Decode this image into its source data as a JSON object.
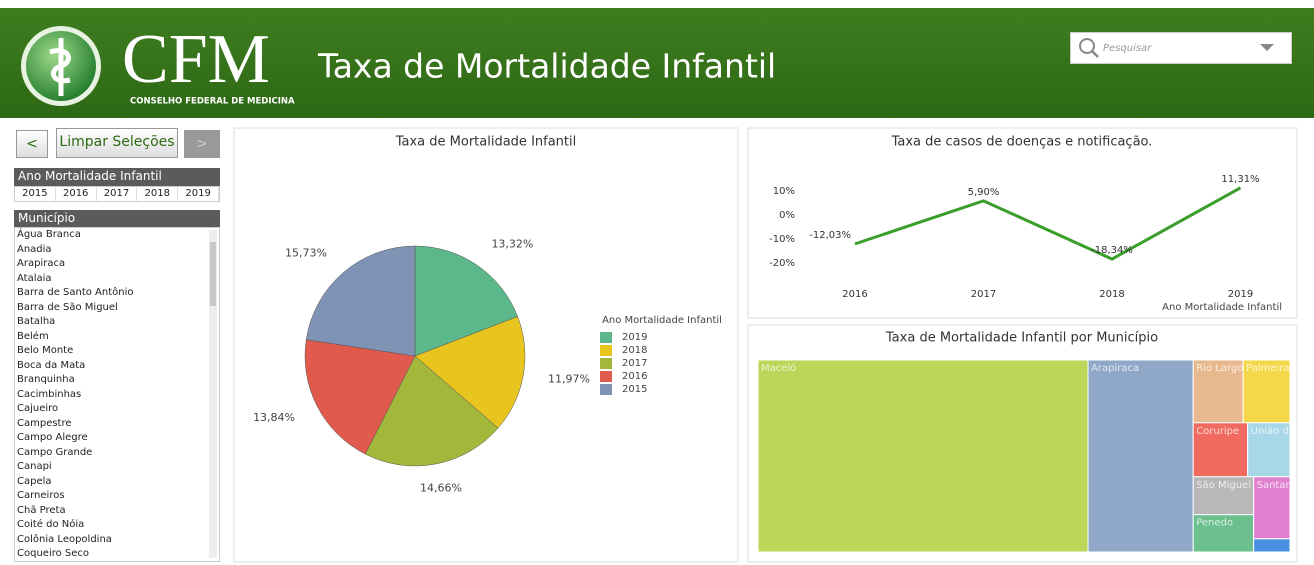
{
  "header": {
    "logo": "CFM",
    "logo_subtitle": "CONSELHO FEDERAL DE MEDICINA",
    "title": "Taxa de Mortalidade Infantil",
    "search_placeholder": "Pesquisar"
  },
  "toolbar": {
    "back": "<",
    "clear": "Limpar Seleções",
    "forward": ">"
  },
  "year_filter": {
    "title": "Ano Mortalidade Infantil",
    "options": [
      "2015",
      "2016",
      "2017",
      "2018",
      "2019"
    ]
  },
  "municipio_filter": {
    "title": "Município",
    "options": [
      "Água Branca",
      "Anadia",
      "Arapiraca",
      "Atalaia",
      "Barra de Santo Antônio",
      "Barra de São Miguel",
      "Batalha",
      "Belém",
      "Belo Monte",
      "Boca da Mata",
      "Branquinha",
      "Cacimbinhas",
      "Cajueiro",
      "Campestre",
      "Campo Alegre",
      "Campo Grande",
      "Canapi",
      "Capela",
      "Carneiros",
      "Chã Preta",
      "Coité do Nóia",
      "Colônia Leopoldina",
      "Coqueiro Seco"
    ]
  },
  "pie_chart": {
    "type": "pie",
    "title": "Taxa de Mortalidade Infantil",
    "legend_title": "Ano Mortalidade Infantil",
    "categories": [
      "2019",
      "2018",
      "2017",
      "2016",
      "2015"
    ],
    "values": [
      13.32,
      11.97,
      14.66,
      13.84,
      15.73
    ],
    "value_labels": [
      "13,32%",
      "11,97%",
      "14,66%",
      "13,84%",
      "15,73%"
    ],
    "colors": [
      "#5cb88a",
      "#e8c51e",
      "#a3b83a",
      "#e05a4e",
      "#7f93b5"
    ]
  },
  "line_chart": {
    "type": "line",
    "title": "Taxa de casos de doenças e notificação.",
    "x_label": "Ano Mortalidade Infantil",
    "categories": [
      "2016",
      "2017",
      "2018",
      "2019"
    ],
    "values": [
      -12.03,
      5.9,
      -18.34,
      11.31
    ],
    "value_labels": [
      "-12,03%",
      "5,90%",
      "-18,34%",
      "11,31%"
    ],
    "color": "#3a9e2a",
    "ylim": [
      -25,
      15
    ],
    "yticks": [
      {
        "value": 10,
        "label": "10%"
      },
      {
        "value": 0,
        "label": "0%"
      },
      {
        "value": -10,
        "label": "-10%"
      },
      {
        "value": -20,
        "label": "-20%"
      }
    ]
  },
  "treemap": {
    "type": "treemap",
    "title": "Taxa de Mortalidade Infantil por Município",
    "categories": [
      "Maceió",
      "Arapiraca",
      "Rio Largo",
      "Palmeira dos Ind",
      "Coruripe",
      "União dos Palmar",
      "São Miguel dos C",
      "Penedo",
      "Santan",
      null
    ],
    "values": [
      63360,
      20200,
      3136,
      2940,
      2940,
      2288,
      2288,
      2256,
      2256,
      480
    ],
    "colors": [
      "#bcd65a",
      "#8fa8c8",
      "#e8b88e",
      "#f5d84a",
      "#f06a60",
      "#a8d8e8",
      "#b8b8b8",
      "#6cc08e",
      "#e080d0",
      "#4a90e0"
    ]
  }
}
